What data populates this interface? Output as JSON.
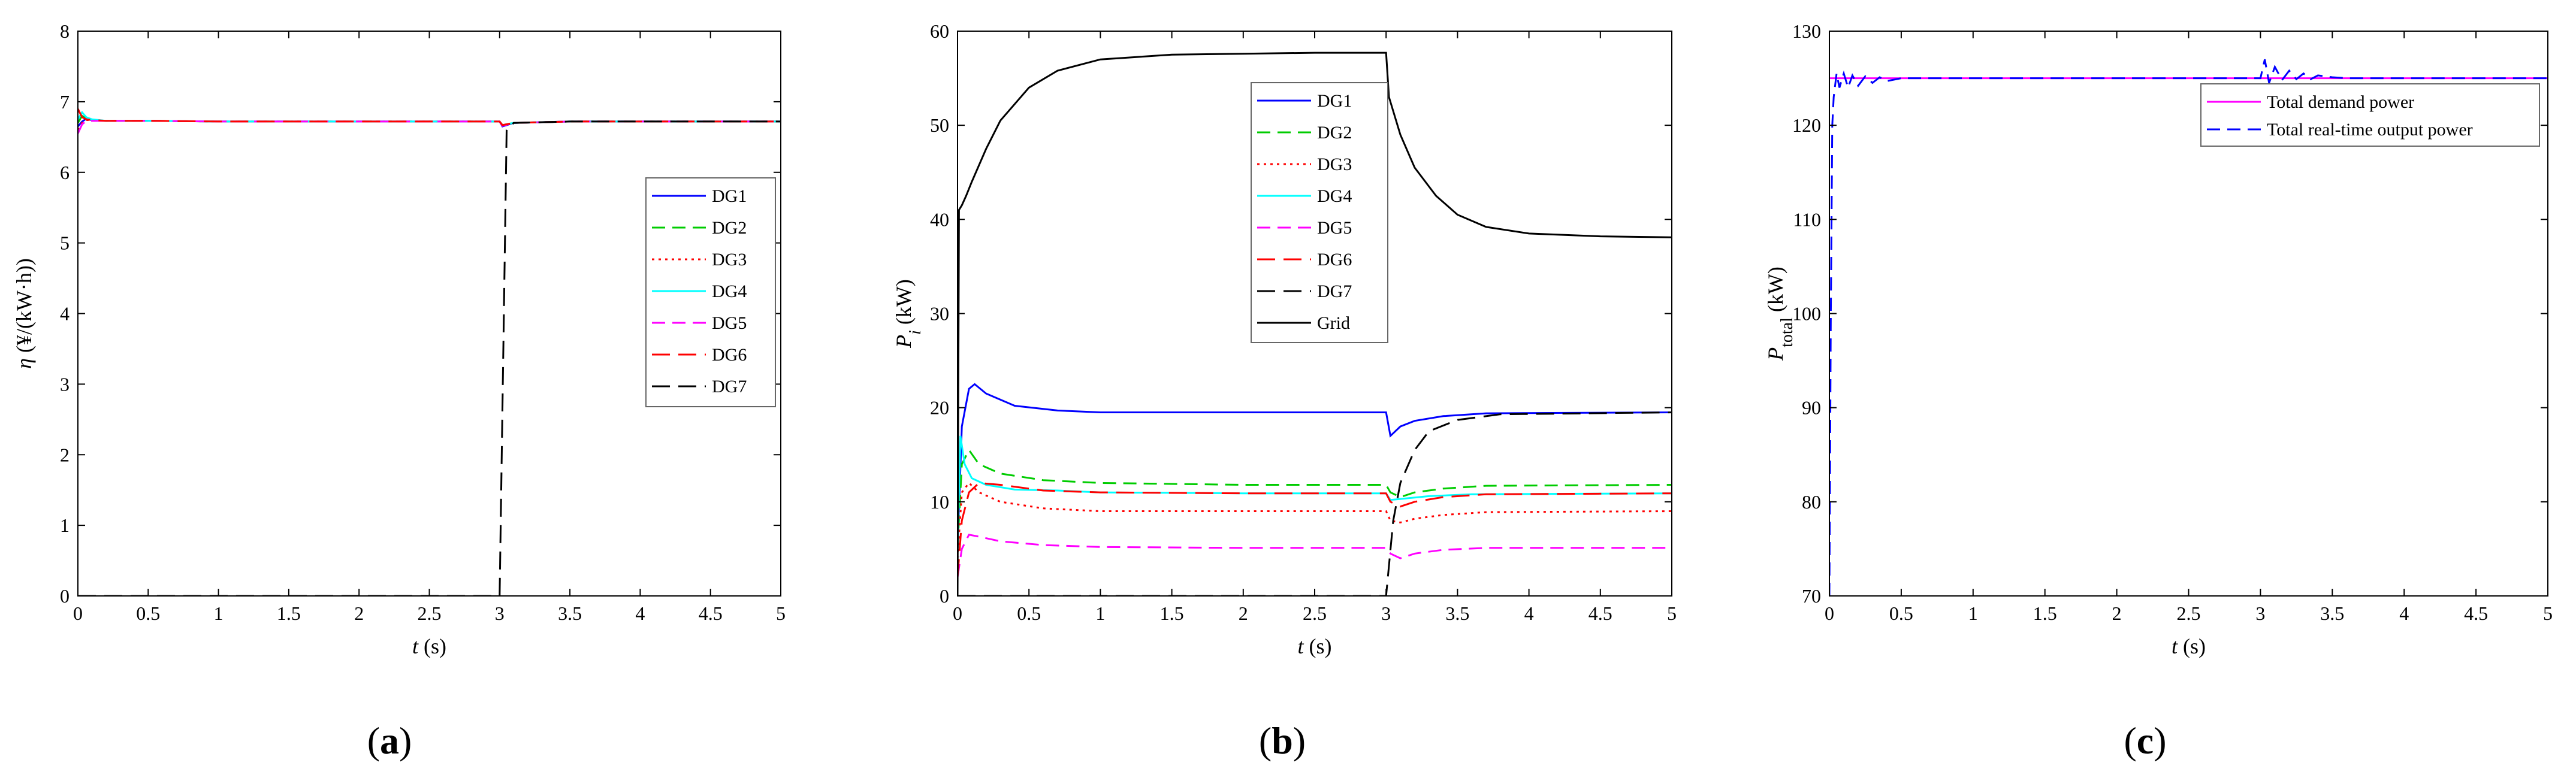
{
  "chart_data": [
    {
      "type": "line",
      "caption": "a",
      "xlabel": "t (s)",
      "ylabel": "η (¥/(kW·h))",
      "xlim": [
        0,
        5
      ],
      "ylim": [
        0,
        8
      ],
      "xticks": [
        "0",
        "0.5",
        "1",
        "1.5",
        "2",
        "2.5",
        "3",
        "3.5",
        "4",
        "4.5",
        "5"
      ],
      "yticks": [
        "0",
        "1",
        "2",
        "3",
        "4",
        "5",
        "6",
        "7",
        "8"
      ],
      "legend_position": "center-right",
      "series": [
        {
          "name": "DG1",
          "color": "#0000ff",
          "dash": "solid",
          "x": [
            0,
            0.03,
            0.06,
            0.1,
            0.2,
            0.5,
            1,
            2,
            3,
            3.02,
            3.1,
            3.5,
            5
          ],
          "y": [
            6.65,
            6.72,
            6.76,
            6.74,
            6.73,
            6.73,
            6.72,
            6.72,
            6.72,
            6.65,
            6.7,
            6.72,
            6.72
          ]
        },
        {
          "name": "DG2",
          "color": "#00cc00",
          "dash": "dash",
          "x": [
            0,
            0.03,
            0.06,
            0.1,
            0.2,
            0.5,
            1,
            2,
            3,
            3.02,
            3.1,
            3.5,
            5
          ],
          "y": [
            6.7,
            6.8,
            6.76,
            6.74,
            6.73,
            6.73,
            6.72,
            6.72,
            6.72,
            6.67,
            6.7,
            6.72,
            6.72
          ]
        },
        {
          "name": "DG3",
          "color": "#ff0000",
          "dash": "dot",
          "x": [
            0,
            0.03,
            0.06,
            0.1,
            0.2,
            0.5,
            1,
            2,
            3,
            3.02,
            3.1,
            3.5,
            5
          ],
          "y": [
            6.6,
            6.7,
            6.74,
            6.74,
            6.73,
            6.73,
            6.72,
            6.72,
            6.72,
            6.66,
            6.7,
            6.72,
            6.72
          ]
        },
        {
          "name": "DG4",
          "color": "#00ffff",
          "dash": "solid",
          "x": [
            0,
            0.03,
            0.06,
            0.1,
            0.2,
            0.5,
            1,
            2,
            3,
            3.02,
            3.1,
            3.5,
            5
          ],
          "y": [
            6.75,
            6.85,
            6.78,
            6.75,
            6.73,
            6.73,
            6.72,
            6.72,
            6.72,
            6.67,
            6.7,
            6.72,
            6.72
          ]
        },
        {
          "name": "DG5",
          "color": "#ff00ff",
          "dash": "dash",
          "x": [
            0,
            0.03,
            0.06,
            0.1,
            0.2,
            0.5,
            1,
            2,
            3,
            3.02,
            3.1,
            3.5,
            5
          ],
          "y": [
            6.55,
            6.68,
            6.73,
            6.73,
            6.73,
            6.73,
            6.72,
            6.72,
            6.72,
            6.66,
            6.7,
            6.72,
            6.72
          ]
        },
        {
          "name": "DG6",
          "color": "#ff0000",
          "dash": "longdash",
          "x": [
            0,
            0.03,
            0.06,
            0.1,
            0.2,
            0.5,
            1,
            2,
            3,
            3.02,
            3.1,
            3.5,
            5
          ],
          "y": [
            6.9,
            6.78,
            6.75,
            6.74,
            6.73,
            6.73,
            6.72,
            6.72,
            6.72,
            6.67,
            6.7,
            6.72,
            6.72
          ]
        },
        {
          "name": "DG7",
          "color": "#000000",
          "dash": "longdash",
          "x": [
            0,
            3,
            3.0,
            3.05,
            3.1,
            3.5,
            5
          ],
          "y": [
            0,
            0,
            0,
            6.6,
            6.7,
            6.72,
            6.72
          ]
        }
      ]
    },
    {
      "type": "line",
      "caption": "b",
      "xlabel": "t (s)",
      "ylabel": "P_i (kW)",
      "xlim": [
        0,
        5
      ],
      "ylim": [
        0,
        60
      ],
      "xticks": [
        "0",
        "0.5",
        "1",
        "1.5",
        "2",
        "2.5",
        "3",
        "3.5",
        "4",
        "4.5",
        "5"
      ],
      "yticks": [
        "0",
        "10",
        "20",
        "30",
        "40",
        "50",
        "60"
      ],
      "legend_position": "top-right",
      "series": [
        {
          "name": "DG1",
          "color": "#0000ff",
          "dash": "solid",
          "x": [
            0,
            0.03,
            0.08,
            0.12,
            0.2,
            0.4,
            0.7,
            1,
            2,
            3,
            3.03,
            3.1,
            3.2,
            3.4,
            3.7,
            5
          ],
          "y": [
            5,
            18,
            22,
            22.5,
            21.5,
            20.2,
            19.7,
            19.5,
            19.5,
            19.5,
            17,
            18,
            18.6,
            19.1,
            19.4,
            19.5
          ]
        },
        {
          "name": "DG2",
          "color": "#00cc00",
          "dash": "dash",
          "x": [
            0,
            0.03,
            0.08,
            0.15,
            0.3,
            0.6,
            1,
            2,
            3,
            3.03,
            3.1,
            3.2,
            3.4,
            3.7,
            5
          ],
          "y": [
            5,
            14,
            15.5,
            14,
            13,
            12.3,
            12,
            11.8,
            11.8,
            11,
            10.5,
            11,
            11.4,
            11.7,
            11.8
          ]
        },
        {
          "name": "DG3",
          "color": "#ff0000",
          "dash": "dot",
          "x": [
            0,
            0.03,
            0.08,
            0.15,
            0.3,
            0.6,
            1,
            2,
            3,
            3.03,
            3.1,
            3.2,
            3.4,
            3.7,
            5
          ],
          "y": [
            4,
            11,
            12,
            11,
            10,
            9.3,
            9,
            9,
            9,
            8,
            7.8,
            8.2,
            8.6,
            8.9,
            9
          ]
        },
        {
          "name": "DG4",
          "color": "#00ffff",
          "dash": "solid",
          "x": [
            0,
            0.02,
            0.05,
            0.1,
            0.2,
            0.4,
            0.7,
            1,
            2,
            3,
            3.03,
            3.1,
            3.3,
            3.6,
            5
          ],
          "y": [
            5,
            17,
            14,
            12.5,
            11.8,
            11.3,
            11.2,
            11,
            10.9,
            10.9,
            10.2,
            10.3,
            10.6,
            10.8,
            10.9
          ]
        },
        {
          "name": "DG5",
          "color": "#ff00ff",
          "dash": "dash",
          "x": [
            0,
            0.03,
            0.08,
            0.15,
            0.3,
            0.6,
            1,
            2,
            3,
            3.03,
            3.1,
            3.2,
            3.4,
            3.7,
            5
          ],
          "y": [
            2,
            5,
            6.5,
            6.3,
            5.8,
            5.4,
            5.2,
            5.1,
            5.1,
            4.5,
            4,
            4.5,
            4.9,
            5.1,
            5.1
          ]
        },
        {
          "name": "DG6",
          "color": "#ff0000",
          "dash": "longdash",
          "x": [
            0,
            0.03,
            0.08,
            0.15,
            0.3,
            0.6,
            1,
            2,
            3,
            3.03,
            3.1,
            3.2,
            3.4,
            3.7,
            5
          ],
          "y": [
            2,
            8,
            11,
            12,
            11.8,
            11.2,
            11,
            10.9,
            10.9,
            10,
            9.5,
            10,
            10.5,
            10.8,
            10.9
          ]
        },
        {
          "name": "DG7",
          "color": "#000000",
          "dash": "longdash",
          "x": [
            0,
            3,
            3.0,
            3.05,
            3.1,
            3.2,
            3.3,
            3.5,
            3.8,
            5
          ],
          "y": [
            0,
            0,
            0,
            8,
            12,
            15.5,
            17.5,
            18.7,
            19.3,
            19.5
          ]
        },
        {
          "name": "Grid",
          "color": "#000000",
          "dash": "solid",
          "x": [
            0,
            0.01,
            0.03,
            0.06,
            0.1,
            0.2,
            0.3,
            0.5,
            0.7,
            1,
            1.5,
            2,
            2.5,
            3,
            3.0,
            3.02,
            3.1,
            3.2,
            3.35,
            3.5,
            3.7,
            4,
            4.5,
            5
          ],
          "y": [
            0,
            41,
            41.5,
            42.5,
            44,
            47.5,
            50.5,
            54,
            55.8,
            57,
            57.5,
            57.6,
            57.7,
            57.7,
            57.7,
            53,
            49,
            45.5,
            42.5,
            40.5,
            39.2,
            38.5,
            38.2,
            38.1
          ]
        }
      ]
    },
    {
      "type": "line",
      "caption": "c",
      "xlabel": "t (s)",
      "ylabel": "P_total (kW)",
      "xlim": [
        0,
        5
      ],
      "ylim": [
        70,
        130
      ],
      "xticks": [
        "0",
        "0.5",
        "1",
        "1.5",
        "2",
        "2.5",
        "3",
        "3.5",
        "4",
        "4.5",
        "5"
      ],
      "yticks": [
        "70",
        "80",
        "90",
        "100",
        "110",
        "120",
        "130"
      ],
      "legend_position": "top-right",
      "series": [
        {
          "name": "Total demand power",
          "color": "#ff00ff",
          "dash": "solid",
          "x": [
            0,
            5
          ],
          "y": [
            125,
            125
          ]
        },
        {
          "name": "Total real-time output power",
          "color": "#0000ff",
          "dash": "dash",
          "x": [
            0,
            0.01,
            0.02,
            0.03,
            0.05,
            0.07,
            0.1,
            0.13,
            0.16,
            0.2,
            0.25,
            0.3,
            0.35,
            0.4,
            0.5,
            0.7,
            1,
            2,
            3,
            3.03,
            3.06,
            3.1,
            3.15,
            3.2,
            3.25,
            3.3,
            3.35,
            3.4,
            3.5,
            3.6,
            3.8,
            5
          ],
          "y": [
            70,
            100,
            120,
            123,
            125.5,
            124,
            125.5,
            124,
            125.3,
            124.2,
            125.2,
            124.5,
            125.1,
            124.7,
            125,
            125,
            125,
            125,
            125,
            127,
            124.5,
            126.2,
            124.8,
            125.8,
            124.9,
            125.5,
            124.9,
            125.3,
            125.1,
            125,
            125,
            125
          ]
        }
      ]
    }
  ]
}
